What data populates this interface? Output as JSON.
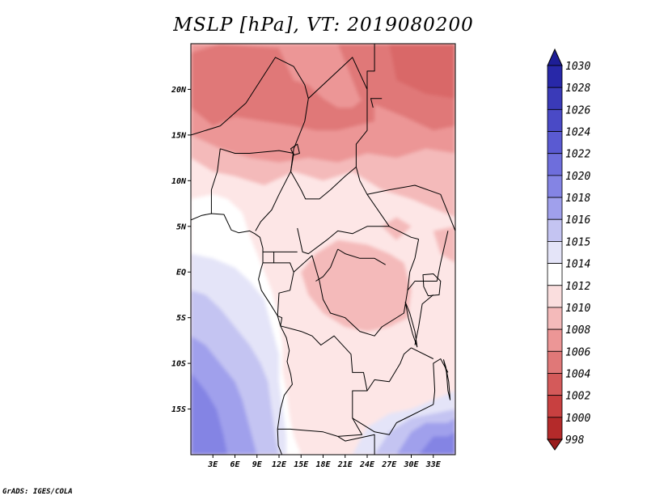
{
  "title": "MSLP [hPa], VT: 2019080200",
  "credit": "GrADS: IGES/COLA",
  "map": {
    "lon_range": [
      0,
      36
    ],
    "lat_range": [
      -20,
      25
    ],
    "lon_ticks": [
      {
        "value": 3,
        "label": "3E"
      },
      {
        "value": 6,
        "label": "6E"
      },
      {
        "value": 9,
        "label": "9E"
      },
      {
        "value": 12,
        "label": "12E"
      },
      {
        "value": 15,
        "label": "15E"
      },
      {
        "value": 18,
        "label": "18E"
      },
      {
        "value": 21,
        "label": "21E"
      },
      {
        "value": 24,
        "label": "24E"
      },
      {
        "value": 27,
        "label": "27E"
      },
      {
        "value": 30,
        "label": "30E"
      },
      {
        "value": 33,
        "label": "33E"
      }
    ],
    "lat_ticks": [
      {
        "value": 20,
        "label": "20N"
      },
      {
        "value": 15,
        "label": "15N"
      },
      {
        "value": 10,
        "label": "10N"
      },
      {
        "value": 5,
        "label": "5N"
      },
      {
        "value": 0,
        "label": "EQ"
      },
      {
        "value": -5,
        "label": "5S"
      },
      {
        "value": -10,
        "label": "10S"
      },
      {
        "value": -15,
        "label": "15S"
      }
    ]
  },
  "colorbar": {
    "levels": [
      "1030",
      "1028",
      "1026",
      "1024",
      "1022",
      "1020",
      "1018",
      "1016",
      "1015",
      "1014",
      "1012",
      "1010",
      "1008",
      "1006",
      "1004",
      "1002",
      "1000",
      "998"
    ],
    "colors": [
      "#1e1e96",
      "#2828a8",
      "#3a3ab8",
      "#4a4ac6",
      "#5a5ad2",
      "#6e6edc",
      "#8484e4",
      "#a0a0ec",
      "#c4c4f2",
      "#e4e4f8",
      "#ffffff",
      "#fadede",
      "#f4baba",
      "#ec9696",
      "#e07878",
      "#d45a5a",
      "#c84040",
      "#b42a2a",
      "#9a1e1e"
    ]
  },
  "pressure_fields": [
    {
      "name": "sahara-low-west",
      "hpa": 1006,
      "color": "#e07878"
    },
    {
      "name": "sahara-low-east",
      "hpa": 1006,
      "color": "#e07878"
    },
    {
      "name": "sahel-band",
      "hpa": 1008,
      "color": "#ec9696"
    },
    {
      "name": "congo-basin-low",
      "hpa": 1010,
      "color": "#f4baba"
    },
    {
      "name": "atlantic-high",
      "hpa": 1016,
      "color": "#c4c4f2"
    },
    {
      "name": "south-atlantic-high-core",
      "hpa": 1020,
      "color": "#8484e4"
    },
    {
      "name": "southeast-high",
      "hpa": 1018,
      "color": "#a0a0ec"
    }
  ]
}
